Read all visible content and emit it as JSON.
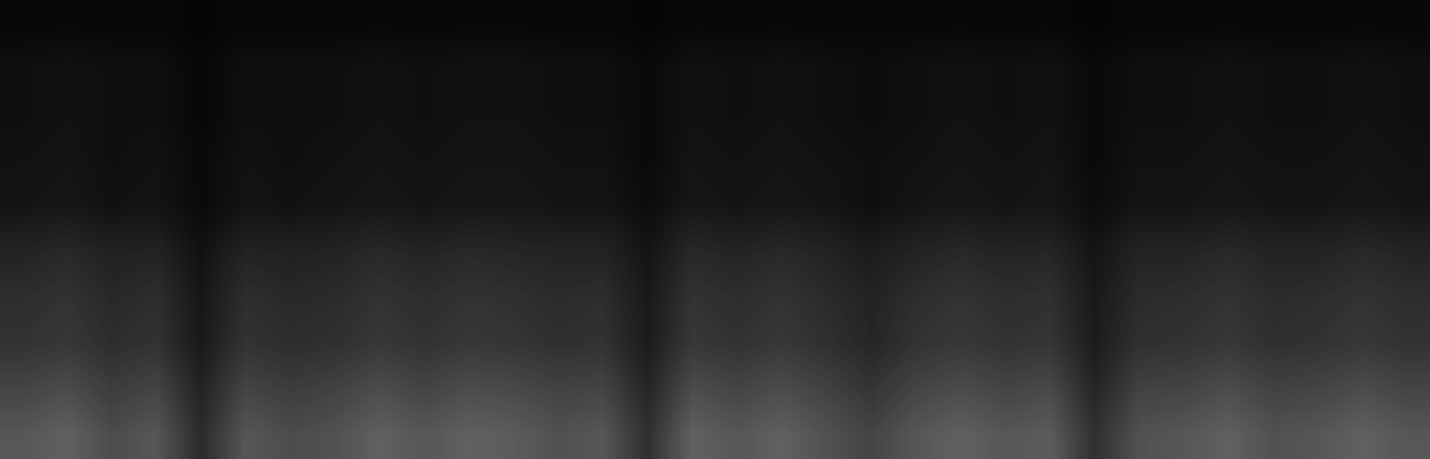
{
  "chart_data": {
    "type": "heatmap",
    "tick_labels": false,
    "zlim": [
      0,
      1
    ],
    "cells": [
      [
        0.03,
        0.03,
        0.03,
        0.03,
        0.02,
        0.03,
        0.03,
        0.03,
        0.03,
        0.03,
        0.03,
        0.03,
        0.03,
        0.03,
        0.02,
        0.03,
        0.03,
        0.03,
        0.03,
        0.03,
        0.03,
        0.03,
        0.03,
        0.03,
        0.02,
        0.03,
        0.03,
        0.03,
        0.03,
        0.03,
        0.03,
        0.03
      ],
      [
        0.06,
        0.07,
        0.06,
        0.06,
        0.03,
        0.06,
        0.06,
        0.06,
        0.07,
        0.06,
        0.07,
        0.07,
        0.06,
        0.06,
        0.04,
        0.07,
        0.06,
        0.07,
        0.06,
        0.05,
        0.06,
        0.07,
        0.06,
        0.07,
        0.04,
        0.06,
        0.06,
        0.07,
        0.06,
        0.06,
        0.07,
        0.06
      ],
      [
        0.06,
        0.07,
        0.06,
        0.06,
        0.03,
        0.06,
        0.06,
        0.06,
        0.07,
        0.06,
        0.07,
        0.07,
        0.06,
        0.06,
        0.04,
        0.07,
        0.06,
        0.07,
        0.06,
        0.05,
        0.06,
        0.07,
        0.06,
        0.07,
        0.04,
        0.06,
        0.06,
        0.07,
        0.06,
        0.06,
        0.07,
        0.06
      ],
      [
        0.07,
        0.08,
        0.06,
        0.07,
        0.04,
        0.07,
        0.06,
        0.07,
        0.08,
        0.07,
        0.08,
        0.08,
        0.07,
        0.07,
        0.04,
        0.08,
        0.07,
        0.08,
        0.07,
        0.06,
        0.07,
        0.08,
        0.07,
        0.08,
        0.04,
        0.07,
        0.07,
        0.08,
        0.07,
        0.07,
        0.08,
        0.07
      ],
      [
        0.08,
        0.09,
        0.07,
        0.08,
        0.04,
        0.08,
        0.07,
        0.08,
        0.09,
        0.08,
        0.09,
        0.09,
        0.08,
        0.08,
        0.05,
        0.09,
        0.08,
        0.09,
        0.08,
        0.06,
        0.08,
        0.09,
        0.08,
        0.09,
        0.05,
        0.08,
        0.08,
        0.09,
        0.08,
        0.08,
        0.09,
        0.08
      ],
      [
        0.14,
        0.16,
        0.13,
        0.14,
        0.07,
        0.14,
        0.13,
        0.14,
        0.16,
        0.14,
        0.16,
        0.15,
        0.14,
        0.14,
        0.08,
        0.16,
        0.14,
        0.16,
        0.14,
        0.11,
        0.14,
        0.16,
        0.14,
        0.15,
        0.08,
        0.14,
        0.14,
        0.16,
        0.14,
        0.14,
        0.16,
        0.14
      ],
      [
        0.18,
        0.2,
        0.16,
        0.18,
        0.09,
        0.18,
        0.16,
        0.17,
        0.2,
        0.18,
        0.2,
        0.19,
        0.17,
        0.18,
        0.1,
        0.2,
        0.18,
        0.2,
        0.17,
        0.14,
        0.18,
        0.2,
        0.18,
        0.19,
        0.1,
        0.17,
        0.18,
        0.2,
        0.17,
        0.18,
        0.2,
        0.18
      ],
      [
        0.2,
        0.22,
        0.18,
        0.2,
        0.1,
        0.2,
        0.18,
        0.19,
        0.22,
        0.2,
        0.22,
        0.21,
        0.19,
        0.2,
        0.11,
        0.22,
        0.2,
        0.22,
        0.19,
        0.15,
        0.2,
        0.22,
        0.2,
        0.21,
        0.11,
        0.19,
        0.2,
        0.22,
        0.19,
        0.2,
        0.22,
        0.2
      ],
      [
        0.27,
        0.3,
        0.24,
        0.27,
        0.14,
        0.27,
        0.24,
        0.26,
        0.3,
        0.27,
        0.3,
        0.29,
        0.26,
        0.27,
        0.15,
        0.3,
        0.27,
        0.3,
        0.26,
        0.21,
        0.27,
        0.3,
        0.27,
        0.29,
        0.15,
        0.26,
        0.27,
        0.3,
        0.26,
        0.27,
        0.3,
        0.27
      ],
      [
        0.34,
        0.38,
        0.3,
        0.34,
        0.17,
        0.34,
        0.3,
        0.32,
        0.38,
        0.34,
        0.38,
        0.36,
        0.32,
        0.34,
        0.19,
        0.38,
        0.34,
        0.38,
        0.32,
        0.27,
        0.34,
        0.38,
        0.34,
        0.36,
        0.19,
        0.32,
        0.34,
        0.38,
        0.32,
        0.34,
        0.38,
        0.34
      ]
    ]
  }
}
